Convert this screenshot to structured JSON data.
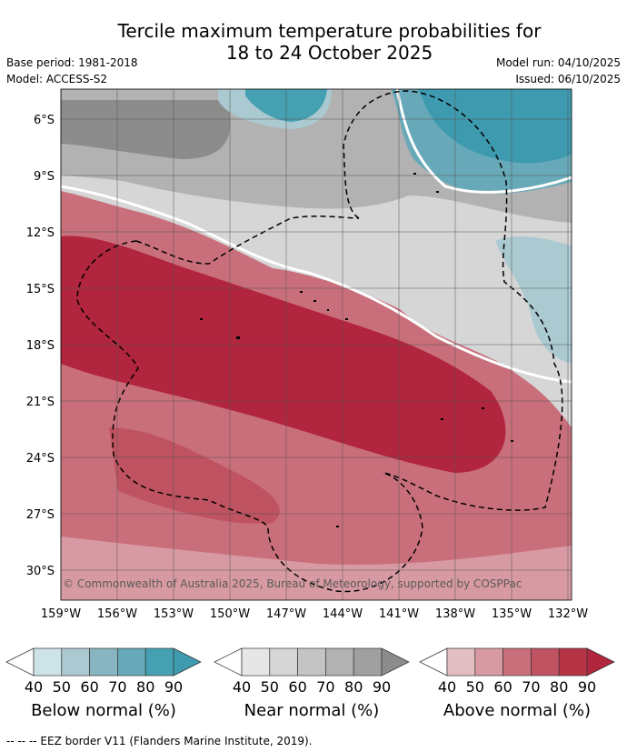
{
  "header": {
    "title_line1": "Tercile maximum temperature probabilities for",
    "title_line2": "18 to 24 October 2025",
    "base_period": "Base period: 1981-2018",
    "model": "Model: ACCESS-S2",
    "model_run": "Model run: 04/10/2025",
    "issued": "Issued: 06/10/2025"
  },
  "map": {
    "lat_labels": [
      "6°S",
      "9°S",
      "12°S",
      "15°S",
      "18°S",
      "21°S",
      "24°S",
      "27°S",
      "30°S"
    ],
    "lon_labels": [
      "159°W",
      "156°W",
      "153°W",
      "150°W",
      "147°W",
      "144°W",
      "141°W",
      "138°W",
      "135°W",
      "132°W"
    ],
    "copyright": "© Commonwealth of Australia 2025, Bureau of Meteorology, supported by COSPPac"
  },
  "colorbars": [
    {
      "label": "Below normal (%)",
      "ticks": [
        "40",
        "50",
        "60",
        "70",
        "80",
        "90"
      ],
      "colors": [
        "#ffffff",
        "#cde3e8",
        "#aac9d0",
        "#88b5c1",
        "#67a9b8",
        "#45a0b2",
        "#3e9aae"
      ]
    },
    {
      "label": "Near normal (%)",
      "ticks": [
        "40",
        "50",
        "60",
        "70",
        "80",
        "90"
      ],
      "colors": [
        "#ffffff",
        "#e6e6e6",
        "#d6d6d6",
        "#c4c4c4",
        "#b2b2b2",
        "#a0a0a0",
        "#8c8c8c"
      ]
    },
    {
      "label": "Above normal (%)",
      "ticks": [
        "40",
        "50",
        "60",
        "70",
        "80",
        "90"
      ],
      "colors": [
        "#ffffff",
        "#e3bfc4",
        "#d89aa2",
        "#c96f7b",
        "#bf5361",
        "#b63446",
        "#b1253e"
      ]
    }
  ],
  "footer": {
    "legend_text": "--  --  -- EEZ border V11 (Flanders Marine Institute, 2019)."
  }
}
